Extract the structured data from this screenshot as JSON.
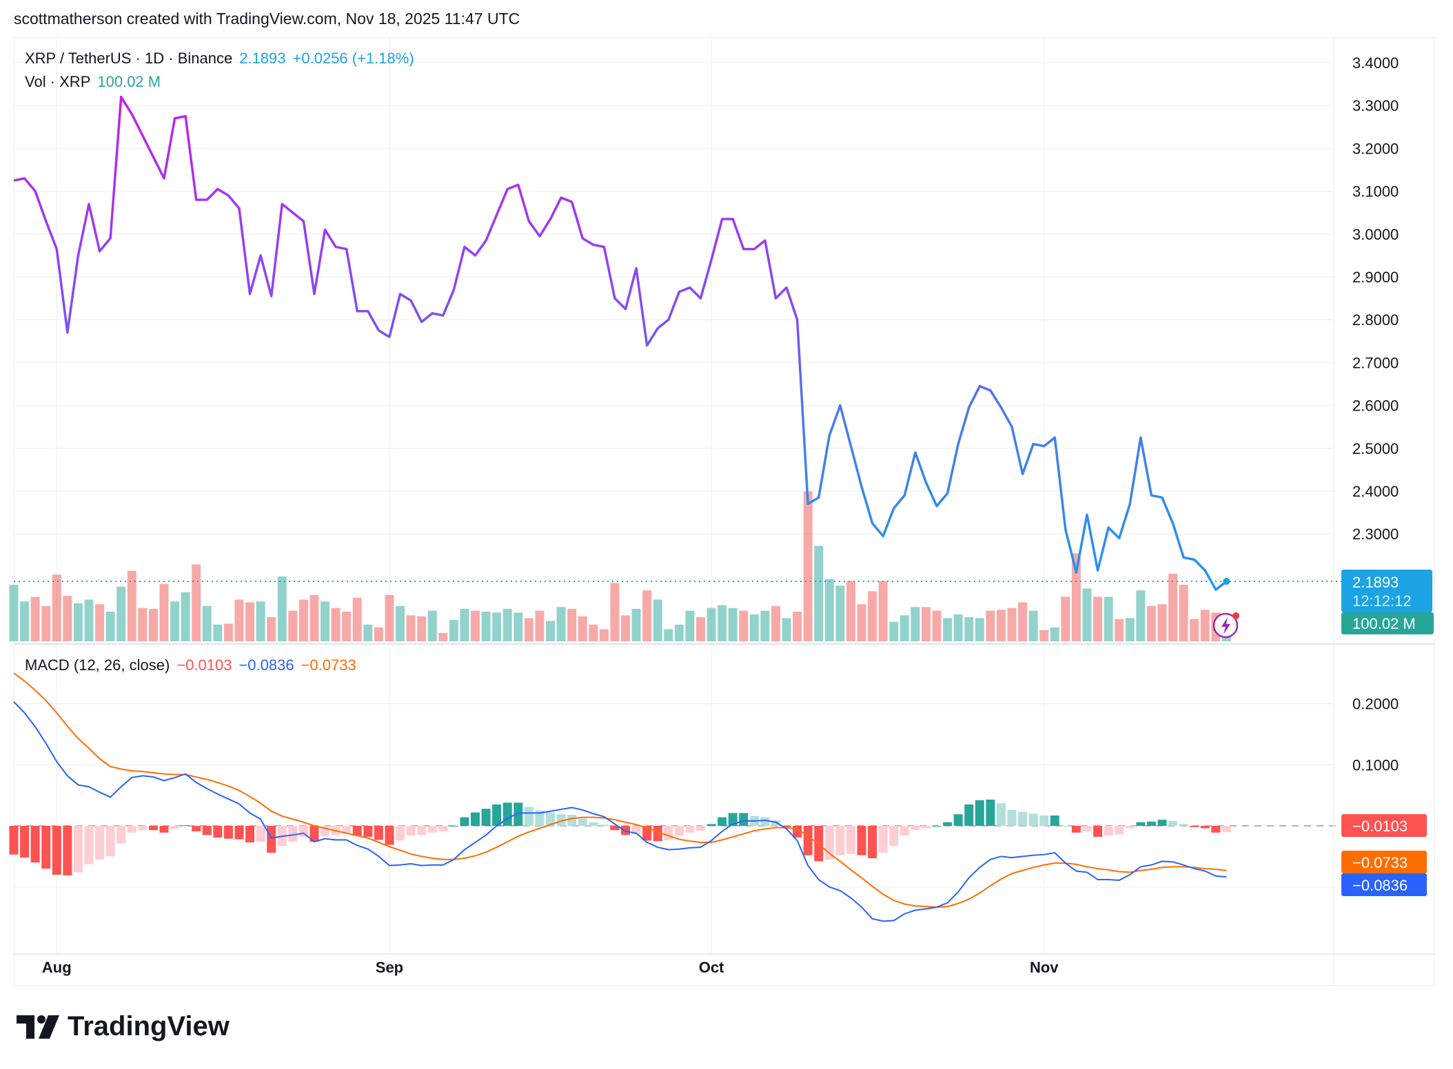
{
  "header": {
    "attribution": "scottmatherson created with TradingView.com, Nov 18, 2025 11:47 UTC"
  },
  "legend": {
    "symbol": "XRP / TetherUS · 1D · Binance",
    "last": "2.1893",
    "change": "+0.0256 (+1.18%)",
    "volume_label": "Vol · XRP",
    "volume_value": "100.02 M",
    "macd_label": "MACD (12, 26, close)",
    "macd_hist": "−0.0103",
    "macd_line": "−0.0836",
    "macd_signal": "−0.0733"
  },
  "price_label": {
    "value": "2.1893",
    "countdown": "12:12:12"
  },
  "volume_label_box": "100.02 M",
  "logo": {
    "text": "TradingView"
  },
  "colors": {
    "up": "#26a69a",
    "down": "#ef5350",
    "price_line_top": "#c41ef2",
    "price_line_bottom": "#2196f3",
    "last_price": "#1ca3e4",
    "macd": "#2962ff",
    "signal": "#ff6d00",
    "hist_up_strong": "#26a69a",
    "hist_up_weak": "#b2dfdb",
    "hist_down_strong": "#ff5252",
    "hist_down_weak": "#ffcdd2"
  },
  "icons": {
    "alert": "lightning-icon"
  },
  "chart_data": [
    {
      "type": "line",
      "title": "XRP / TetherUS · 1D · Binance",
      "x_start": "2025-07-28",
      "x_end": "2025-11-18",
      "x_tick_labels": [
        "Aug",
        "Sep",
        "Oct",
        "Nov"
      ],
      "y_tick_labels": [
        "3.4000",
        "3.3000",
        "3.2000",
        "3.1000",
        "3.0000",
        "2.9000",
        "2.8000",
        "2.7000",
        "2.6000",
        "2.5000",
        "2.4000",
        "2.3000"
      ],
      "ylim": [
        2.1,
        3.45
      ],
      "grid": true,
      "series": [
        {
          "values": [
            3.125,
            3.13,
            3.1,
            3.03,
            2.965,
            2.77,
            2.95,
            3.07,
            2.96,
            2.99,
            3.32,
            3.28,
            3.23,
            3.18,
            3.13,
            3.27,
            3.275,
            3.08,
            3.08,
            3.105,
            3.09,
            3.06,
            2.86,
            2.95,
            2.855,
            3.07,
            3.05,
            3.03,
            2.86,
            3.01,
            2.97,
            2.965,
            2.82,
            2.82,
            2.775,
            2.76,
            2.86,
            2.845,
            2.795,
            2.815,
            2.81,
            2.87,
            2.97,
            2.95,
            2.985,
            3.045,
            3.105,
            3.115,
            3.03,
            2.995,
            3.035,
            3.085,
            3.075,
            2.99,
            2.975,
            2.97,
            2.85,
            2.825,
            2.92,
            2.74,
            2.78,
            2.8,
            2.865,
            2.875,
            2.85,
            2.94,
            3.035,
            3.035,
            2.965,
            2.965,
            2.985,
            2.85,
            2.875,
            2.8,
            2.37,
            2.385,
            2.53,
            2.6,
            2.505,
            2.41,
            2.325,
            2.295,
            2.36,
            2.39,
            2.49,
            2.42,
            2.365,
            2.395,
            2.51,
            2.595,
            2.645,
            2.635,
            2.595,
            2.55,
            2.44,
            2.51,
            2.505,
            2.525,
            2.31,
            2.21,
            2.345,
            2.215,
            2.315,
            2.29,
            2.37,
            2.525,
            2.39,
            2.385,
            2.325,
            2.245,
            2.24,
            2.215,
            2.17,
            2.1893
          ]
        }
      ]
    },
    {
      "type": "bar",
      "title": "Vol · XRP",
      "unit": "M",
      "values": [
        244,
        172,
        192,
        152,
        288,
        196,
        164,
        180,
        160,
        128,
        236,
        304,
        144,
        140,
        248,
        172,
        212,
        332,
        152,
        72,
        76,
        180,
        168,
        172,
        104,
        280,
        132,
        180,
        200,
        172,
        144,
        128,
        188,
        72,
        60,
        200,
        152,
        112,
        108,
        132,
        36,
        92,
        140,
        132,
        128,
        124,
        140,
        124,
        100,
        132,
        88,
        148,
        140,
        108,
        72,
        52,
        252,
        112,
        140,
        220,
        180,
        52,
        72,
        132,
        104,
        144,
        156,
        144,
        132,
        116,
        132,
        152,
        100,
        128,
        648,
        412,
        268,
        240,
        260,
        160,
        216,
        260,
        84,
        112,
        148,
        148,
        132,
        100,
        116,
        104,
        100,
        132,
        136,
        144,
        168,
        132,
        48,
        60,
        192,
        380,
        228,
        192,
        192,
        96,
        100,
        220,
        152,
        160,
        292,
        244,
        96,
        136,
        124,
        100.02
      ]
    },
    {
      "type": "line",
      "title": "MACD (12, 26, close)",
      "y_tick_labels": [
        "0.2000",
        "0.1000"
      ],
      "ylim": [
        -0.21,
        0.26
      ],
      "series": [
        {
          "name": "MACD",
          "values": [
            0.203,
            0.185,
            0.162,
            0.135,
            0.105,
            0.082,
            0.067,
            0.064,
            0.055,
            0.047,
            0.064,
            0.079,
            0.082,
            0.08,
            0.074,
            0.079,
            0.085,
            0.071,
            0.061,
            0.052,
            0.044,
            0.036,
            0.021,
            0.011,
            -0.02,
            -0.017,
            -0.015,
            -0.012,
            -0.026,
            -0.021,
            -0.023,
            -0.023,
            -0.032,
            -0.038,
            -0.05,
            -0.065,
            -0.064,
            -0.062,
            -0.065,
            -0.064,
            -0.064,
            -0.055,
            -0.039,
            -0.027,
            -0.015,
            0.0,
            0.012,
            0.021,
            0.021,
            0.021,
            0.024,
            0.027,
            0.03,
            0.026,
            0.02,
            0.015,
            0.003,
            -0.009,
            -0.012,
            -0.027,
            -0.035,
            -0.039,
            -0.038,
            -0.036,
            -0.035,
            -0.024,
            -0.009,
            0.003,
            0.008,
            0.008,
            0.009,
            0.006,
            -0.005,
            -0.024,
            -0.065,
            -0.088,
            -0.1,
            -0.106,
            -0.118,
            -0.133,
            -0.152,
            -0.156,
            -0.155,
            -0.144,
            -0.138,
            -0.136,
            -0.133,
            -0.126,
            -0.108,
            -0.085,
            -0.068,
            -0.055,
            -0.05,
            -0.052,
            -0.05,
            -0.048,
            -0.047,
            -0.044,
            -0.061,
            -0.074,
            -0.076,
            -0.088,
            -0.088,
            -0.089,
            -0.08,
            -0.067,
            -0.064,
            -0.058,
            -0.059,
            -0.064,
            -0.07,
            -0.074,
            -0.082,
            -0.0836
          ]
        },
        {
          "name": "Signal",
          "values": [
            0.25,
            0.237,
            0.222,
            0.205,
            0.185,
            0.163,
            0.143,
            0.127,
            0.11,
            0.097,
            0.093,
            0.09,
            0.089,
            0.087,
            0.085,
            0.084,
            0.084,
            0.08,
            0.076,
            0.071,
            0.065,
            0.058,
            0.048,
            0.037,
            0.024,
            0.016,
            0.011,
            0.006,
            0.0,
            -0.004,
            -0.008,
            -0.012,
            -0.016,
            -0.02,
            -0.027,
            -0.034,
            -0.04,
            -0.046,
            -0.05,
            -0.053,
            -0.055,
            -0.055,
            -0.053,
            -0.049,
            -0.043,
            -0.035,
            -0.026,
            -0.017,
            -0.01,
            -0.004,
            0.002,
            0.008,
            0.012,
            0.014,
            0.014,
            0.013,
            0.01,
            0.006,
            0.002,
            -0.003,
            -0.01,
            -0.016,
            -0.022,
            -0.025,
            -0.027,
            -0.027,
            -0.023,
            -0.018,
            -0.013,
            -0.008,
            -0.005,
            -0.003,
            -0.003,
            -0.005,
            -0.017,
            -0.03,
            -0.045,
            -0.058,
            -0.072,
            -0.085,
            -0.099,
            -0.112,
            -0.122,
            -0.128,
            -0.131,
            -0.132,
            -0.133,
            -0.132,
            -0.127,
            -0.12,
            -0.11,
            -0.098,
            -0.087,
            -0.078,
            -0.073,
            -0.068,
            -0.064,
            -0.061,
            -0.061,
            -0.063,
            -0.067,
            -0.07,
            -0.072,
            -0.075,
            -0.076,
            -0.073,
            -0.071,
            -0.068,
            -0.067,
            -0.067,
            -0.068,
            -0.07,
            -0.071,
            -0.0733
          ]
        }
      ]
    }
  ]
}
